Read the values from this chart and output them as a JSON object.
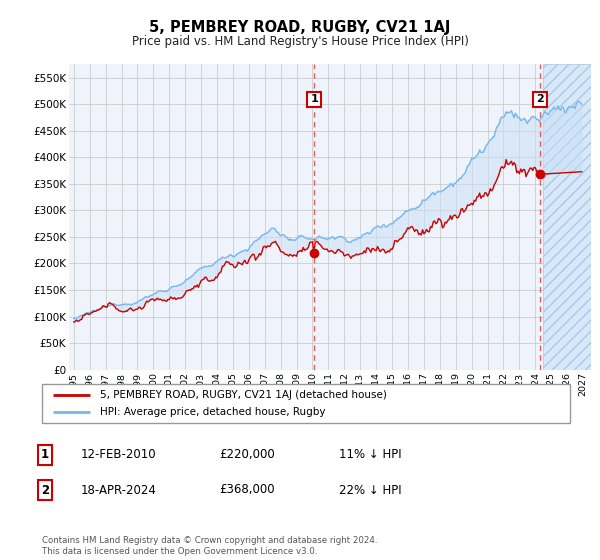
{
  "title": "5, PEMBREY ROAD, RUGBY, CV21 1AJ",
  "subtitle": "Price paid vs. HM Land Registry's House Price Index (HPI)",
  "x_start_year": 1995,
  "x_end_year": 2027,
  "ylim": [
    0,
    575000
  ],
  "yticks": [
    0,
    50000,
    100000,
    150000,
    200000,
    250000,
    300000,
    350000,
    400000,
    450000,
    500000,
    550000
  ],
  "sale1_date_num": 2010.1,
  "sale1_price": 220000,
  "sale2_date_num": 2024.3,
  "sale2_price": 368000,
  "hpi_color": "#7ab8e8",
  "price_color": "#cc0000",
  "vline_color": "#e06060",
  "grid_color": "#cccccc",
  "bg_color": "#eef3fc",
  "legend_label_red": "5, PEMBREY ROAD, RUGBY, CV21 1AJ (detached house)",
  "legend_label_blue": "HPI: Average price, detached house, Rugby",
  "annot1_label": "1",
  "annot1_date": "12-FEB-2010",
  "annot1_price": "£220,000",
  "annot1_pct": "11% ↓ HPI",
  "annot2_label": "2",
  "annot2_date": "18-APR-2024",
  "annot2_price": "£368,000",
  "annot2_pct": "22% ↓ HPI",
  "footer": "Contains HM Land Registry data © Crown copyright and database right 2024.\nThis data is licensed under the Open Government Licence v3.0."
}
